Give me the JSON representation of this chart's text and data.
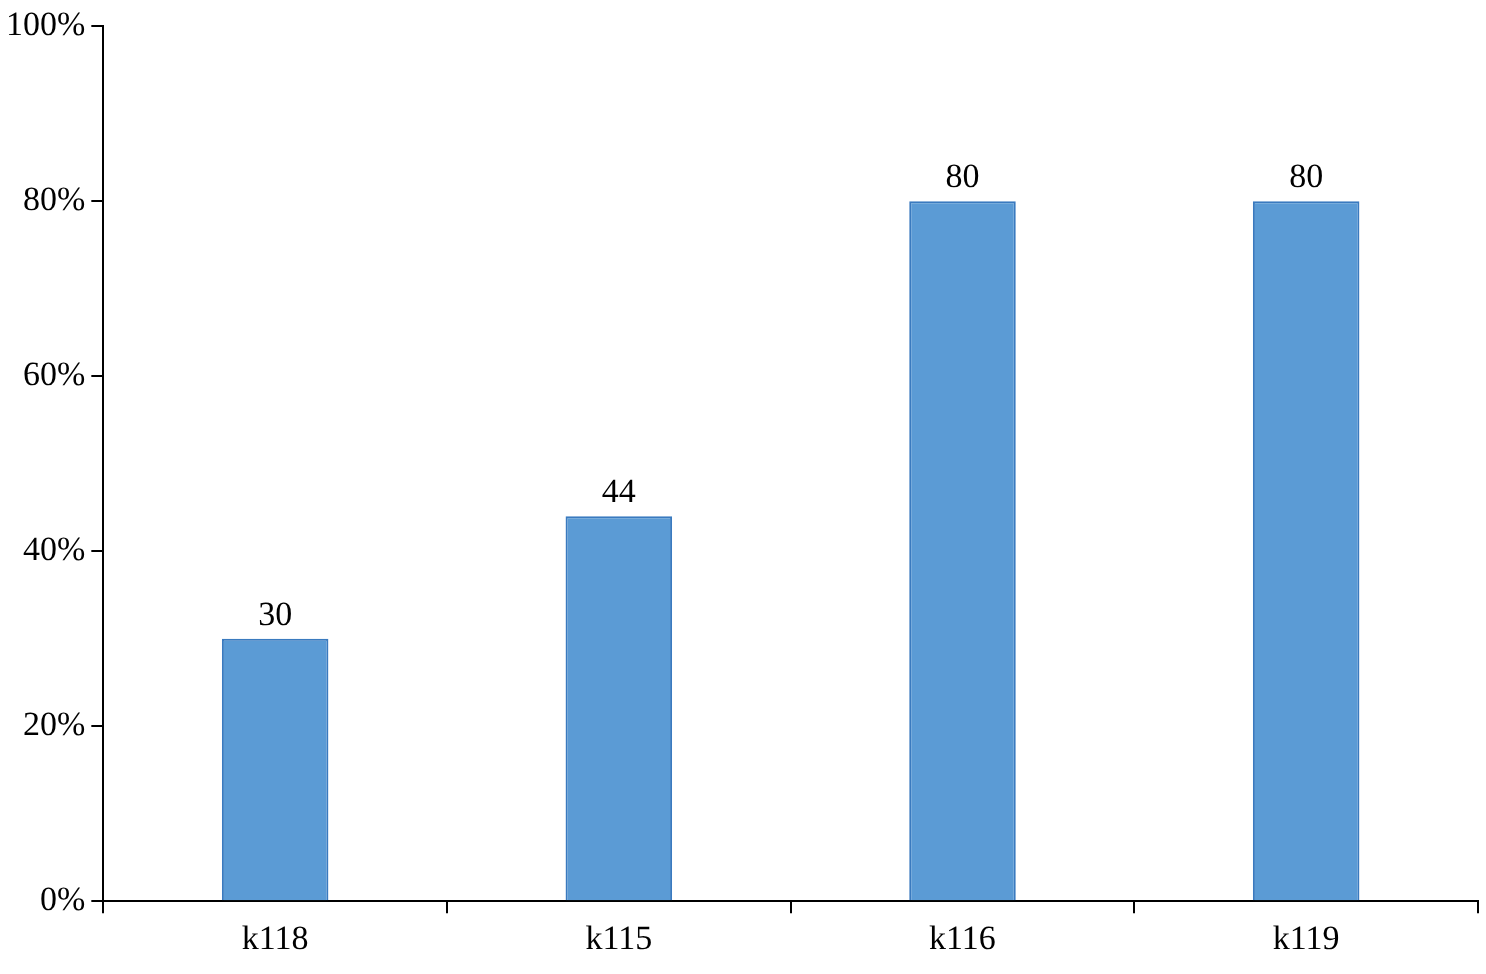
{
  "chart_data": {
    "type": "bar",
    "categories": [
      "k118",
      "k115",
      "k116",
      "k119"
    ],
    "values": [
      30,
      44,
      80,
      80
    ],
    "color": "#5b9bd5",
    "ylim": [
      0,
      100
    ],
    "yticks": [
      {
        "value": 0,
        "label": "0%"
      },
      {
        "value": 20,
        "label": "20%"
      },
      {
        "value": 40,
        "label": "40%"
      },
      {
        "value": 60,
        "label": "60%"
      },
      {
        "value": 80,
        "label": "80%"
      },
      {
        "value": 100,
        "label": "100%"
      }
    ],
    "data_labels": true,
    "legend": false
  }
}
